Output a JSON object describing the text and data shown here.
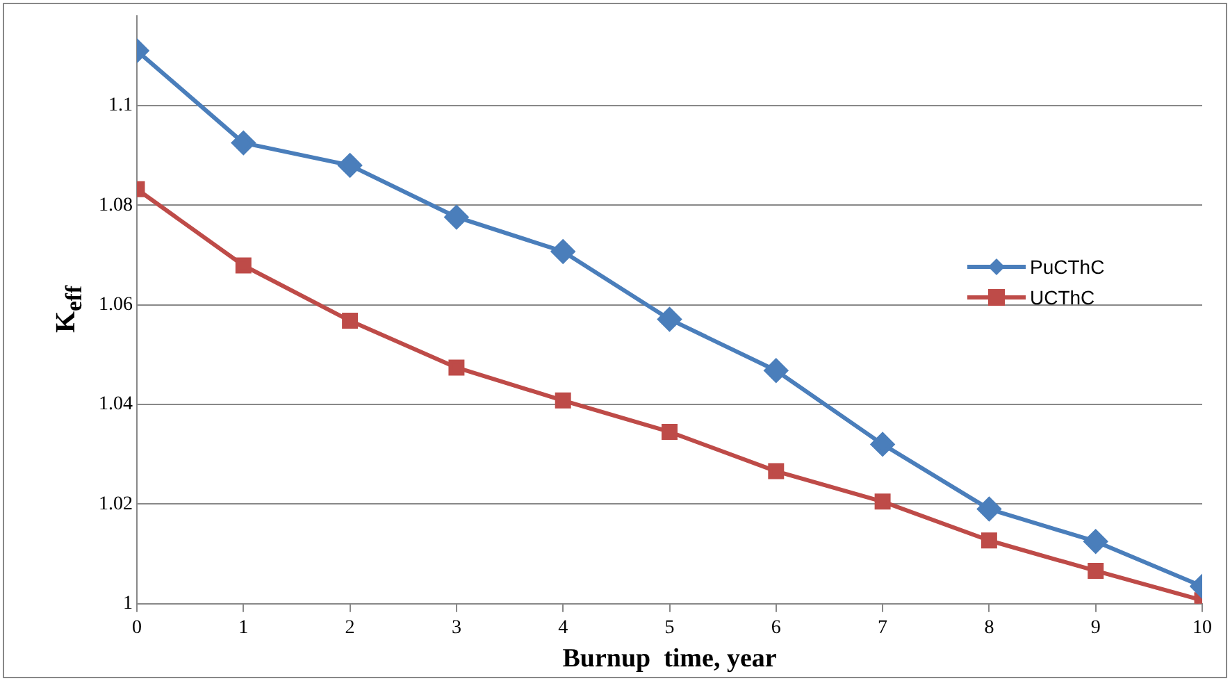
{
  "chart_data": {
    "type": "line",
    "xlabel": "Burnup  time, year",
    "ylabel": "K$_{eff}$",
    "x": [
      0,
      1,
      2,
      3,
      4,
      5,
      6,
      7,
      8,
      9,
      10
    ],
    "series": [
      {
        "name": "PuCThC",
        "color": "#4a7ebb",
        "marker": "diamond",
        "values": [
          1.111,
          1.0925,
          1.088,
          1.0776,
          1.0707,
          1.0571,
          1.0468,
          1.032,
          1.019,
          1.0125,
          1.0035
        ]
      },
      {
        "name": "UCThC",
        "color": "#be4b48",
        "marker": "square",
        "values": [
          1.0832,
          1.0679,
          1.0568,
          1.0474,
          1.0408,
          1.0345,
          1.0266,
          1.0205,
          1.0127,
          1.0066,
          1.0007
        ]
      }
    ],
    "xlim": [
      0,
      10
    ],
    "xticks": [
      0,
      1,
      2,
      3,
      4,
      5,
      6,
      7,
      8,
      9,
      10
    ],
    "ylim": [
      1,
      1.118
    ],
    "yticks": [
      1,
      1.02,
      1.04,
      1.06,
      1.08,
      1.1
    ],
    "grid": "y",
    "legend": "right",
    "line_style": "solid"
  }
}
